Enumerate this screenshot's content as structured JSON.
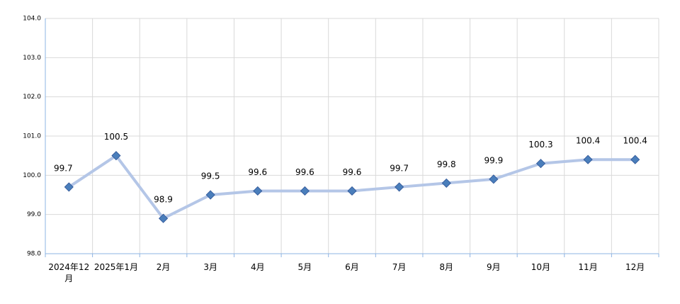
{
  "chart_data": {
    "type": "line",
    "categories": [
      "2024年12月",
      "2025年1月",
      "2月",
      "3月",
      "4月",
      "5月",
      "6月",
      "7月",
      "8月",
      "9月",
      "10月",
      "11月",
      "12月"
    ],
    "series": [
      {
        "color": "#4a7ebb",
        "line_color": "#b4c6e7",
        "values": [
          99.7,
          100.5,
          98.9,
          99.5,
          99.6,
          99.6,
          99.6,
          99.7,
          99.8,
          99.9,
          100.3,
          100.4,
          100.4
        ]
      }
    ],
    "ylim": [
      98,
      104
    ],
    "yticks": [
      {
        "value": 98,
        "label": "98.0"
      },
      {
        "value": 99,
        "label": "99.0"
      },
      {
        "value": 100,
        "label": "100.0"
      },
      {
        "value": 101,
        "label": "101.0"
      },
      {
        "value": 102,
        "label": "102.0"
      },
      {
        "value": 103,
        "label": "103.0"
      },
      {
        "value": 104,
        "label": "104.0"
      }
    ],
    "grid": true
  }
}
